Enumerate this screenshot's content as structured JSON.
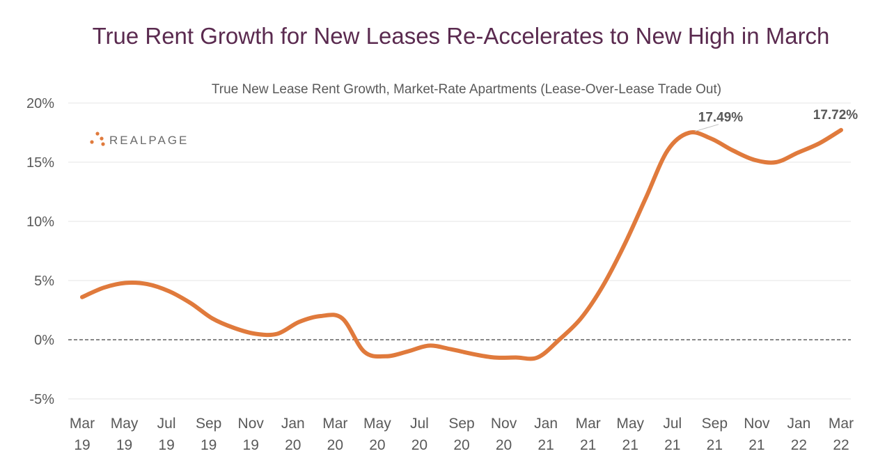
{
  "chart_data": {
    "type": "line",
    "title": "True Rent Growth for New Leases Re-Accelerates to New High in March",
    "subtitle": "True New Lease Rent Growth, Market-Rate Apartments (Lease-Over-Lease Trade Out)",
    "brand": "REALPAGE",
    "xlabel": "",
    "ylabel": "",
    "ylim": [
      -5,
      20
    ],
    "yticks": [
      "20%",
      "15%",
      "10%",
      "5%",
      "0%",
      "-5%"
    ],
    "ytick_values": [
      20,
      15,
      10,
      5,
      0,
      -5
    ],
    "x_tick_labels": [
      [
        "Mar",
        "19"
      ],
      [
        "May",
        "19"
      ],
      [
        "Jul",
        "19"
      ],
      [
        "Sep",
        "19"
      ],
      [
        "Nov",
        "19"
      ],
      [
        "Jan",
        "20"
      ],
      [
        "Mar",
        "20"
      ],
      [
        "May",
        "20"
      ],
      [
        "Jul",
        "20"
      ],
      [
        "Sep",
        "20"
      ],
      [
        "Nov",
        "20"
      ],
      [
        "Jan",
        "21"
      ],
      [
        "Mar",
        "21"
      ],
      [
        "May",
        "21"
      ],
      [
        "Jul",
        "21"
      ],
      [
        "Sep",
        "21"
      ],
      [
        "Nov",
        "21"
      ],
      [
        "Jan",
        "22"
      ],
      [
        "Mar",
        "22"
      ]
    ],
    "series": [
      {
        "name": "True New Lease Rent Growth",
        "color": "#e07a3c",
        "values": [
          3.6,
          4.4,
          4.8,
          4.7,
          4.1,
          3.1,
          1.8,
          1.0,
          0.5,
          0.5,
          1.5,
          2.0,
          1.8,
          -1.0,
          -1.4,
          -1.0,
          -0.5,
          -0.8,
          -1.2,
          -1.5,
          -1.5,
          -1.5,
          0.0,
          1.8,
          4.5,
          8.0,
          12.0,
          16.0,
          17.49,
          17.0,
          16.0,
          15.2,
          15.0,
          15.8,
          16.6,
          17.72
        ]
      }
    ],
    "annotations": [
      {
        "label": "17.49%",
        "index": 28
      },
      {
        "label": "17.72%",
        "index": 35
      }
    ],
    "reference_line": 0,
    "grid": true,
    "legend": "none"
  }
}
